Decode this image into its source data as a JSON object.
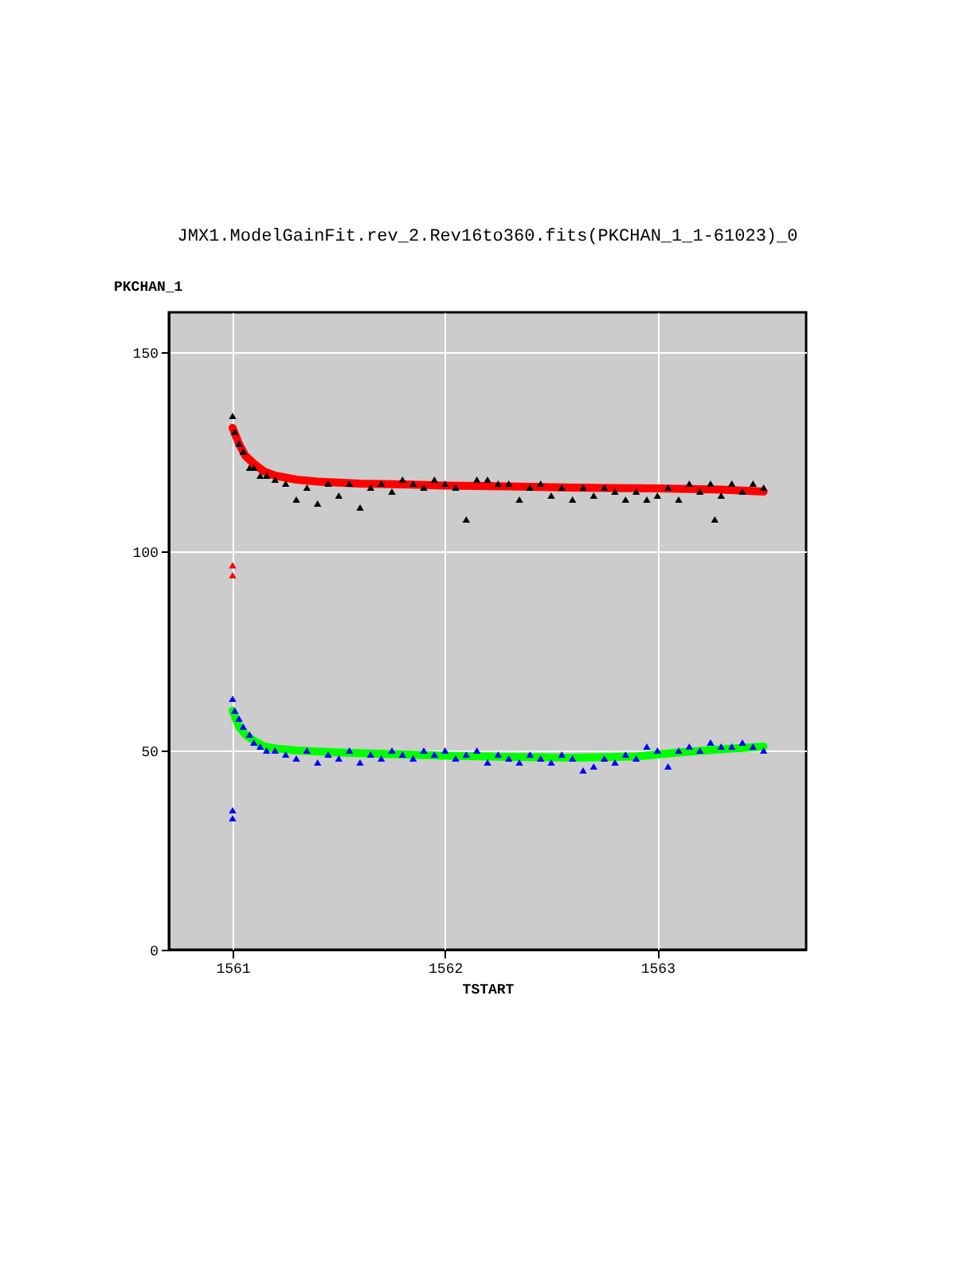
{
  "chart_data": {
    "type": "scatter",
    "title": "JMX1.ModelGainFit.rev_2.Rev16to360.fits(PKCHAN_1_1-61023)_0",
    "xlabel": "TSTART",
    "ylabel": "PKCHAN_1",
    "xlim": [
      1560.7,
      1563.7
    ],
    "ylim": [
      0,
      160
    ],
    "xticks": [
      1561,
      1562,
      1563
    ],
    "yticks": [
      0,
      50,
      100,
      150
    ],
    "grid": true,
    "marker": "triangle",
    "series": [
      {
        "color": "#000000",
        "x": [
          1561.0,
          1561.01,
          1561.03,
          1561.05,
          1561.08,
          1561.1,
          1561.13,
          1561.16,
          1561.2,
          1561.25,
          1561.3,
          1561.35,
          1561.4,
          1561.45,
          1561.5,
          1561.55,
          1561.6,
          1561.65,
          1561.7,
          1561.75,
          1561.8,
          1561.85,
          1561.9,
          1561.95,
          1562.0,
          1562.05,
          1562.1,
          1562.15,
          1562.2,
          1562.25,
          1562.3,
          1562.35,
          1562.4,
          1562.45,
          1562.5,
          1562.55,
          1562.6,
          1562.65,
          1562.7,
          1562.75,
          1562.8,
          1562.85,
          1562.9,
          1562.95,
          1563.0,
          1563.05,
          1563.1,
          1563.15,
          1563.2,
          1563.25,
          1563.27,
          1563.3,
          1563.35,
          1563.4,
          1563.45,
          1563.5
        ],
        "values": [
          134,
          130,
          127,
          125,
          121,
          121,
          119,
          119,
          118,
          117,
          113,
          116,
          112,
          117,
          114,
          117,
          111,
          116,
          117,
          115,
          118,
          117,
          116,
          118,
          117,
          116,
          108,
          118,
          118,
          117,
          117,
          113,
          116,
          117,
          114,
          116,
          113,
          116,
          114,
          116,
          115,
          113,
          115,
          113,
          114,
          116,
          113,
          117,
          115,
          117,
          108,
          114,
          117,
          115,
          117,
          116
        ]
      },
      {
        "color": "#0000ff",
        "x": [
          1561.0,
          1561.01,
          1561.03,
          1561.05,
          1561.08,
          1561.1,
          1561.13,
          1561.16,
          1561.2,
          1561.25,
          1561.3,
          1561.35,
          1561.4,
          1561.45,
          1561.5,
          1561.55,
          1561.6,
          1561.65,
          1561.7,
          1561.75,
          1561.8,
          1561.85,
          1561.9,
          1561.95,
          1562.0,
          1562.05,
          1562.1,
          1562.15,
          1562.2,
          1562.25,
          1562.3,
          1562.35,
          1562.4,
          1562.45,
          1562.5,
          1562.55,
          1562.6,
          1562.65,
          1562.7,
          1562.75,
          1562.8,
          1562.85,
          1562.9,
          1562.95,
          1563.0,
          1563.05,
          1563.1,
          1563.15,
          1563.2,
          1563.25,
          1563.3,
          1563.35,
          1563.4,
          1563.45,
          1563.5,
          1561.0,
          1561.0
        ],
        "values": [
          63,
          60,
          58,
          56,
          54,
          52,
          51,
          50,
          50,
          49,
          48,
          50,
          47,
          49,
          48,
          50,
          47,
          49,
          48,
          50,
          49,
          48,
          50,
          49,
          50,
          48,
          49,
          50,
          47,
          49,
          48,
          47,
          49,
          48,
          47,
          49,
          48,
          45,
          46,
          48,
          47,
          49,
          48,
          51,
          50,
          46,
          50,
          51,
          50,
          52,
          51,
          51,
          52,
          51,
          50,
          35,
          33
        ]
      },
      {
        "color": "#ff0000",
        "x": [
          1561.0,
          1561.0
        ],
        "values": [
          96.5,
          94
        ]
      },
      {
        "type": "line",
        "marker": "none",
        "color": "#ff0000",
        "x": [
          1561.0,
          1561.03,
          1561.06,
          1561.1,
          1561.15,
          1561.2,
          1561.3,
          1561.4,
          1561.6,
          1561.8,
          1562.0,
          1562.3,
          1562.6,
          1563.0,
          1563.3,
          1563.5
        ],
        "values": [
          131,
          127,
          124,
          122,
          120,
          119,
          118,
          117.5,
          117,
          116.8,
          116.5,
          116.3,
          116,
          115.8,
          115.5,
          115
        ]
      },
      {
        "type": "line",
        "marker": "none",
        "color": "#00ff00",
        "x": [
          1561.0,
          1561.03,
          1561.06,
          1561.1,
          1561.15,
          1561.2,
          1561.3,
          1561.5,
          1561.8,
          1562.0,
          1562.3,
          1562.6,
          1562.9,
          1563.1,
          1563.3,
          1563.5
        ],
        "values": [
          60,
          56,
          54,
          52.5,
          51,
          50.5,
          50,
          49.5,
          49,
          48.7,
          48.4,
          48.2,
          48.5,
          49.5,
          50.3,
          51
        ]
      }
    ]
  }
}
